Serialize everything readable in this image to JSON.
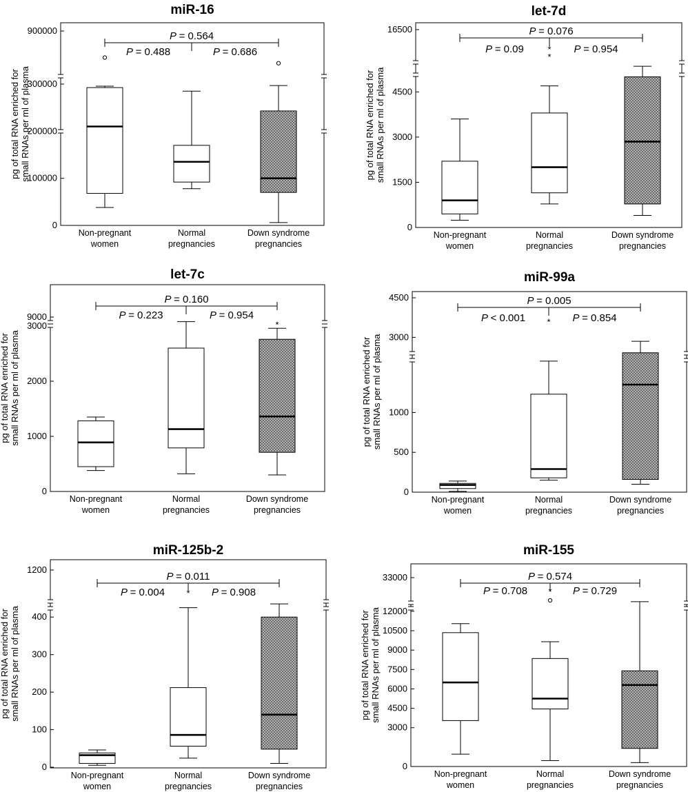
{
  "chart_data": [
    {
      "type": "box",
      "title": "miR-16",
      "ylabel": [
        "pg of total RNA enriched for",
        "small RNAs per ml of plasma"
      ],
      "categories": [
        [
          "Non-pregnant",
          "women"
        ],
        [
          "Normal",
          "pregnancies"
        ],
        [
          "Down syndrome",
          "pregnancies"
        ]
      ],
      "yticks": [
        "900000",
        "300000",
        "200000",
        "100000",
        "0"
      ],
      "boxes": [
        {
          "min": 38000,
          "q1": 68000,
          "median": 210000,
          "q3": 303000,
          "max": 318000
        },
        {
          "min": 78000,
          "q1": 92000,
          "median": 135000,
          "q3": 170000,
          "max": 285000
        },
        {
          "min": 6000,
          "q1": 70000,
          "median": 100000,
          "q3": 243000,
          "max": 325000
        }
      ],
      "outliers": [
        {
          "group": 0,
          "value": 620000,
          "marker": "circle"
        },
        {
          "group": 2,
          "value": 560000,
          "marker": "circle"
        }
      ],
      "pvalues": {
        "overall": "= 0.564",
        "left": "= 0.488",
        "right": "= 0.686"
      }
    },
    {
      "type": "box",
      "title": "let-7d",
      "ylabel": [
        "pg of total RNA enriched for",
        "small RNAs per ml of plasma"
      ],
      "categories": [
        [
          "Non-pregnant",
          "women"
        ],
        [
          "Normal",
          "pregnancies"
        ],
        [
          "Down syndrome",
          "pregnancies"
        ]
      ],
      "yticks": [
        "16500",
        "4500",
        "3000",
        "1500",
        "0"
      ],
      "boxes": [
        {
          "min": 240,
          "q1": 450,
          "median": 900,
          "q3": 2200,
          "max": 3600
        },
        {
          "min": 780,
          "q1": 1150,
          "median": 2000,
          "q3": 3800,
          "max": 4700
        },
        {
          "min": 400,
          "q1": 780,
          "median": 2850,
          "q3": 5000,
          "max": 5350
        }
      ],
      "outliers": [
        {
          "group": 1,
          "value": 11500,
          "marker": "star"
        },
        {
          "group": 1,
          "value": 9500,
          "marker": "star"
        }
      ],
      "pvalues": {
        "overall": "= 0.076",
        "left": "= 0.09",
        "right": "= 0.954"
      }
    },
    {
      "type": "box",
      "title": "let-7c",
      "ylabel": [
        "pg of total RNA enriched for",
        "small RNAs per ml of plasma"
      ],
      "categories": [
        [
          "Non-pregnant",
          "women"
        ],
        [
          "Normal",
          "pregnancies"
        ],
        [
          "Down syndrome",
          "pregnancies"
        ]
      ],
      "yticks": [
        "9000",
        "3000",
        "2000",
        "1000",
        "0"
      ],
      "boxes": [
        {
          "min": 380,
          "q1": 450,
          "median": 890,
          "q3": 1280,
          "max": 1350
        },
        {
          "min": 320,
          "q1": 790,
          "median": 1130,
          "q3": 2600,
          "max": 3080
        },
        {
          "min": 300,
          "q1": 710,
          "median": 1360,
          "q3": 2760,
          "max": 2960
        }
      ],
      "outliers": [
        {
          "group": 2,
          "value": 7000,
          "marker": "star"
        }
      ],
      "pvalues": {
        "overall": "= 0.160",
        "left": "= 0.223",
        "right": "= 0.954"
      }
    },
    {
      "type": "box",
      "title": "miR-99a",
      "ylabel": [
        "pg of total RNA enriched for",
        "small RNAs per ml of plasma"
      ],
      "categories": [
        [
          "Non-pregnant",
          "women"
        ],
        [
          "Normal",
          "pregnancies"
        ],
        [
          "Down syndrome",
          "pregnancies"
        ]
      ],
      "yticks": [
        "4500",
        "3000",
        "1000",
        "500",
        "0"
      ],
      "boxes": [
        {
          "min": 10,
          "q1": 45,
          "median": 90,
          "q3": 110,
          "max": 140
        },
        {
          "min": 150,
          "q1": 180,
          "median": 290,
          "q3": 1230,
          "max": 2100
        },
        {
          "min": 100,
          "q1": 160,
          "median": 1350,
          "q3": 1750,
          "max": 2850
        }
      ],
      "outliers": [
        {
          "group": 1,
          "value": 3600,
          "marker": "star"
        }
      ],
      "pvalues": {
        "overall": "= 0.005",
        "left": "< 0.001",
        "right": "= 0.854"
      }
    },
    {
      "type": "box",
      "title": "miR-125b-2",
      "ylabel": [
        "pg of total RNA enriched for",
        "small RNAs per ml of plasma"
      ],
      "categories": [
        [
          "Non-pregnant",
          "women"
        ],
        [
          "Normal",
          "pregnancies"
        ],
        [
          "Down syndrome",
          "pregnancies"
        ]
      ],
      "yticks": [
        "1200",
        "400",
        "300",
        "200",
        "100",
        "0"
      ],
      "boxes": [
        {
          "min": 5,
          "q1": 10,
          "median": 32,
          "q3": 38,
          "max": 46
        },
        {
          "min": 24,
          "q1": 56,
          "median": 86,
          "q3": 212,
          "max": 425
        },
        {
          "min": 10,
          "q1": 48,
          "median": 140,
          "q3": 400,
          "max": 435
        }
      ],
      "outliers": [
        {
          "group": 1,
          "value": 950,
          "marker": "star"
        }
      ],
      "pvalues": {
        "overall": "= 0.011",
        "left": "= 0.004",
        "right": "= 0.908"
      }
    },
    {
      "type": "box",
      "title": "miR-155",
      "ylabel": [
        "pg of total RNA enriched for",
        "small RNAs per ml of plasma"
      ],
      "categories": [
        [
          "Non-pregnant",
          "women"
        ],
        [
          "Normal",
          "pregnancies"
        ],
        [
          "Down syndrome",
          "pregnancies"
        ]
      ],
      "yticks": [
        "33000",
        "12000",
        "10500",
        "9000",
        "7500",
        "6000",
        "4500",
        "3000",
        "0"
      ],
      "boxes": [
        {
          "min": 950,
          "q1": 3550,
          "median": 6500,
          "q3": 10350,
          "max": 11050
        },
        {
          "min": 450,
          "q1": 4450,
          "median": 5250,
          "q3": 8350,
          "max": 9650
        },
        {
          "min": 300,
          "q1": 1400,
          "median": 6300,
          "q3": 7400,
          "max": 12750
        }
      ],
      "outliers": [
        {
          "group": 1,
          "value": 26500,
          "marker": "star"
        },
        {
          "group": 1,
          "value": 22000,
          "marker": "circle"
        }
      ],
      "pvalues": {
        "overall": "= 0.574",
        "left": "= 0.708",
        "right": "= 0.729"
      }
    }
  ],
  "p_symbol": "P"
}
